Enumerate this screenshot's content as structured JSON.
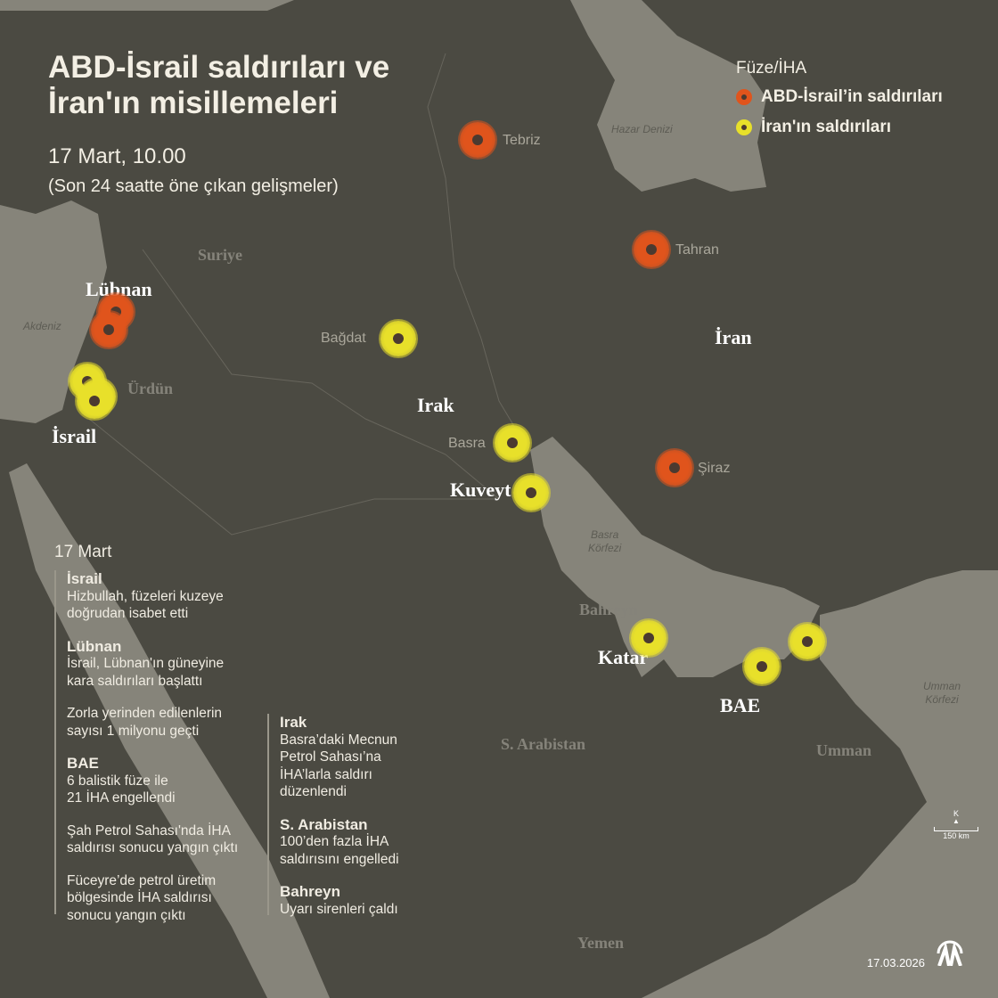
{
  "title": [
    "ABD-İsrail saldırıları ve",
    "İran'ın misillemeleri"
  ],
  "date": "17 Mart, 10.00",
  "subtitle": "(Son 24 saatte öne çıkan gelişmeler)",
  "legend": {
    "title": "Füze/İHA",
    "items": [
      {
        "label": "ABD-İsrail’in saldırıları",
        "color": "#e0541c"
      },
      {
        "label": "İran'ın saldırıları",
        "color": "#e8e02a"
      }
    ]
  },
  "places": {
    "tebriz": "Tebriz",
    "tahran": "Tahran",
    "siraz": "Şiraz",
    "bagdat": "Bağdat",
    "basra": "Basra"
  },
  "seas": {
    "hazar": "Hazar Denizi",
    "akdeniz": "Akdeniz",
    "basra_korfezi": [
      "Basra",
      "Körfezi"
    ],
    "umman_korfezi": [
      "Umman",
      "Körfezi"
    ]
  },
  "countries": {
    "suriye": "Suriye",
    "lubnan": "Lübnan",
    "urdun": "Ürdün",
    "israil": "İsrail",
    "irak": "Irak",
    "iran": "İran",
    "kuveyt": "Kuveyt",
    "bahreyn": "Bahreyn",
    "katar": "Katar",
    "bae": "BAE",
    "s_arabistan": "S. Arabistan",
    "umman": "Umman",
    "yemen": "Yemen"
  },
  "strikes": [
    {
      "place": "Tebriz",
      "side": "ABD-İsrail"
    },
    {
      "place": "Tahran",
      "side": "ABD-İsrail"
    },
    {
      "place": "Şiraz",
      "side": "ABD-İsrail"
    },
    {
      "place": "Lübnan",
      "side": "ABD-İsrail"
    },
    {
      "place": "Lübnan",
      "side": "ABD-İsrail"
    },
    {
      "place": "Bağdat",
      "side": "İran"
    },
    {
      "place": "Basra",
      "side": "İran"
    },
    {
      "place": "Kuveyt",
      "side": "İran"
    },
    {
      "place": "İsrail",
      "side": "İran"
    },
    {
      "place": "İsrail",
      "side": "İran"
    },
    {
      "place": "İsrail",
      "side": "İran"
    },
    {
      "place": "Katar",
      "side": "İran"
    },
    {
      "place": "BAE",
      "side": "İran"
    },
    {
      "place": "BAE",
      "side": "İran"
    }
  ],
  "news": {
    "date": "17 Mart",
    "left": [
      {
        "heading": "İsrail",
        "lines": [
          "Hizbullah, füzeleri kuzeye",
          "doğrudan isabet etti"
        ]
      },
      {
        "heading": "Lübnan",
        "lines": [
          "İsrail, Lübnan'ın güneyine",
          "kara saldırıları başlattı"
        ]
      },
      {
        "heading": "",
        "lines": [
          "Zorla yerinden edilenlerin",
          "sayısı 1 milyonu geçti"
        ]
      },
      {
        "heading": "BAE",
        "lines": [
          "6 balistik füze ile",
          "21 İHA engellendi"
        ]
      },
      {
        "heading": "",
        "lines": [
          "Şah Petrol Sahası'nda İHA",
          "saldırısı sonucu yangın çıktı"
        ]
      },
      {
        "heading": "",
        "lines": [
          "Füceyre’de petrol üretim",
          "bölgesinde İHA saldırısı",
          "sonucu yangın çıktı"
        ]
      }
    ],
    "right": [
      {
        "heading": "Irak",
        "lines": [
          "Basra’daki Mecnun",
          "Petrol Sahası’na",
          "İHA’larla saldırı",
          "düzenlendi"
        ]
      },
      {
        "heading": "S. Arabistan",
        "lines": [
          "100’den fazla İHA",
          "saldırısını engelledi"
        ]
      },
      {
        "heading": "Bahreyn",
        "lines": [
          "Uyarı sirenleri çaldı"
        ]
      }
    ]
  },
  "scale": {
    "north": "K",
    "distance": "150 km"
  },
  "footer": {
    "date": "17.03.2026",
    "logo": "AA"
  }
}
